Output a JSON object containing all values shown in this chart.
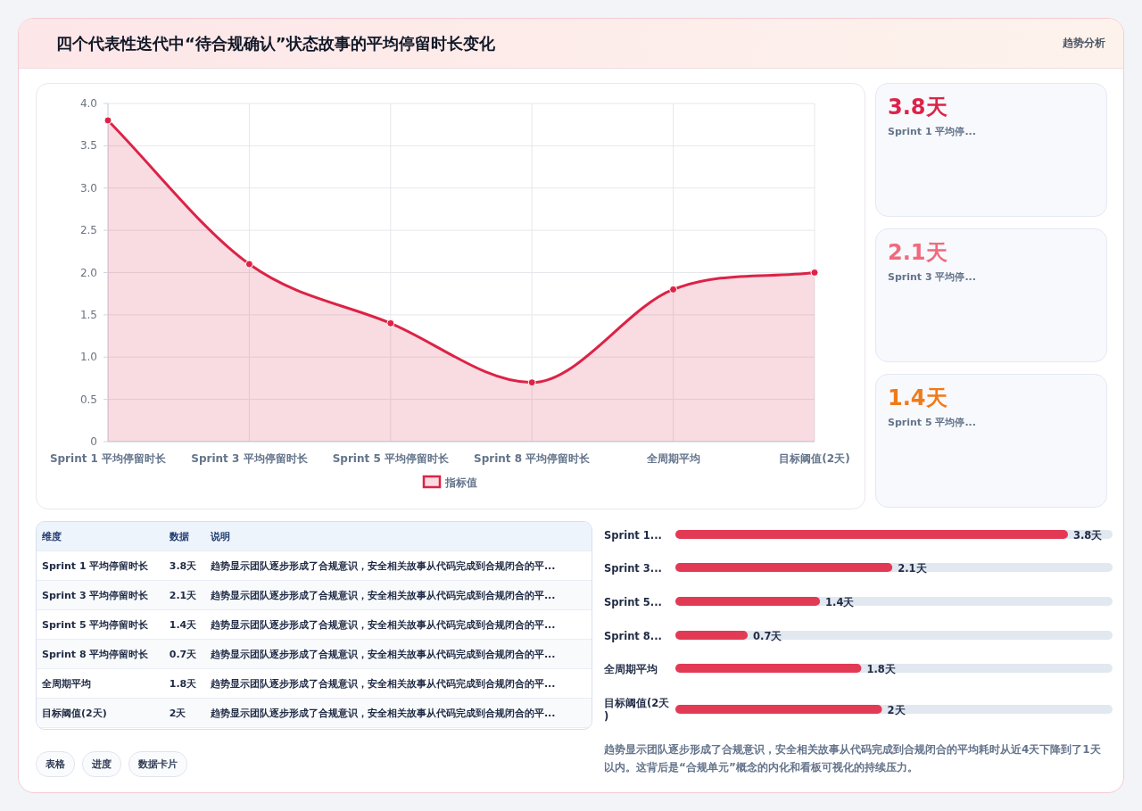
{
  "chart_data": [
    {
      "type": "area",
      "title": "四个代表性迭代中“待合规确认”状态故事的平均停留时长变化",
      "annotations": [
        "趋势分析"
      ],
      "categories": [
        "Sprint 1 平均停留时长",
        "Sprint 3 平均停留时长",
        "Sprint 5 平均停留时长",
        "Sprint 8 平均停留时长",
        "全周期平均",
        "目标阈值(2天)"
      ],
      "series": [
        {
          "name": "指标值",
          "color": "#dc2347",
          "values": [
            3.8,
            2.1,
            1.4,
            0.7,
            1.8,
            2
          ]
        }
      ],
      "ylim": [
        0,
        4
      ],
      "yticks": [
        0,
        0.5,
        {
          "value": 1,
          "label": "1.0"
        },
        1.5,
        {
          "value": 2,
          "label": "2.0"
        },
        2.5,
        {
          "value": 3,
          "label": "3.0"
        },
        3.5,
        {
          "value": 4,
          "label": "4.0"
        }
      ],
      "grid": true,
      "legend": "bottom",
      "marker": "circle"
    },
    {
      "type": "other",
      "annotations": [
        "3.8天",
        "Sprint 1 平均停...",
        "2.1天",
        "Sprint 3 平均停...",
        "1.4天",
        "Sprint 5 平均停..."
      ],
      "colors": [
        "#dc2347",
        "#f06a7e",
        "#f07a1a"
      ]
    },
    {
      "type": "other",
      "annotations": [
        "维度",
        "数据",
        "说明",
        "Sprint 1 平均停留时长",
        "3.8天",
        "趋势显示团队逐步形成了合规意识，安全相关故事从代码完成到合规闭合的平...",
        "Sprint 3 平均停留时长",
        "2.1天",
        "趋势显示团队逐步形成了合规意识，安全相关故事从代码完成到合规闭合的平...",
        "Sprint 5 平均停留时长",
        "1.4天",
        "趋势显示团队逐步形成了合规意识，安全相关故事从代码完成到合规闭合的平...",
        "Sprint 8 平均停留时长",
        "0.7天",
        "趋势显示团队逐步形成了合规意识，安全相关故事从代码完成到合规闭合的平...",
        "全周期平均",
        "1.8天",
        "趋势显示团队逐步形成了合规意识，安全相关故事从代码完成到合规闭合的平...",
        "目标阈值(2天)",
        "2天",
        "趋势显示团队逐步形成了合规意识，安全相关故事从代码完成到合规闭合的平...",
        "表格",
        "进度",
        "数据卡片"
      ]
    },
    {
      "type": "bar",
      "orientation": "horizontal",
      "categories": [
        "Sprint 1...",
        "Sprint 3...",
        "Sprint 5...",
        "Sprint 8...",
        "全周期平均",
        "目标阈值(2天)"
      ],
      "values": [
        3.8,
        2.1,
        1.4,
        0.7,
        1.8,
        2
      ],
      "value_labels": [
        "3.8天",
        "2.1天",
        "1.4天",
        "0.7天",
        "1.8天",
        "2天"
      ],
      "color": "#e23a55",
      "annotations": [
        "趋势显示团队逐步形成了合规意识，安全相关故事从代码完成到合规闭合的平均耗时从近4天下降到了1天以内。这背后是“合规单元”概念的内化和看板可视化的持续压力。"
      ]
    }
  ]
}
